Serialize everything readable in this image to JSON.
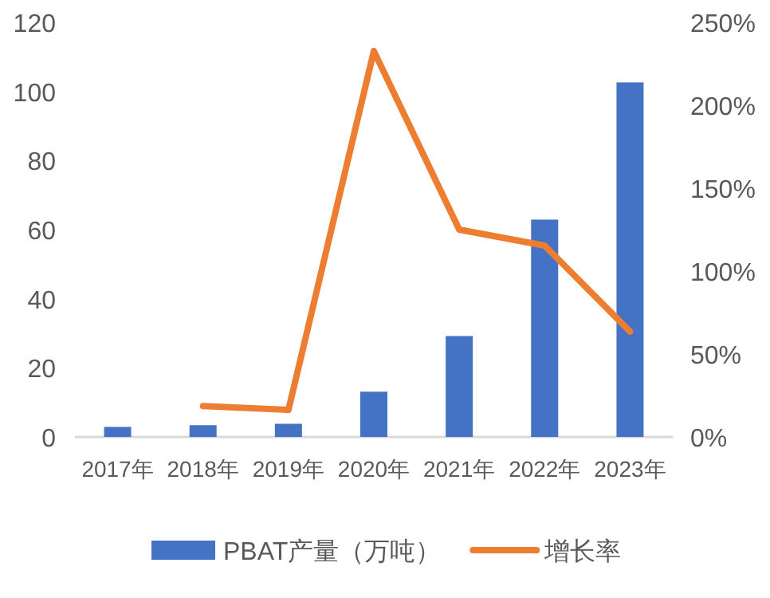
{
  "chart_data": {
    "type": "bar",
    "categories": [
      "2017年",
      "2018年",
      "2019年",
      "2020年",
      "2021年",
      "2022年",
      "2023年"
    ],
    "series": [
      {
        "name": "PBAT产量（万吨）",
        "color": "#4472c4",
        "values": [
          2.9,
          3.4,
          3.8,
          13.1,
          29.2,
          62.9,
          102.6
        ]
      },
      {
        "name": "增长率",
        "color": "#ed7d31",
        "type": "line",
        "axis": "y2",
        "line_style": "solid",
        "values": [
          null,
          18.6,
          16.3,
          232.7,
          125,
          115.4,
          63.5
        ]
      }
    ],
    "ylim": [
      0,
      120
    ],
    "yticks": [
      0,
      20,
      40,
      60,
      80,
      100,
      120
    ],
    "y2lim": [
      0,
      250
    ],
    "y2ticks": [
      {
        "value": 0,
        "label": "0%"
      },
      {
        "value": 50,
        "label": "50%"
      },
      {
        "value": 100,
        "label": "100%"
      },
      {
        "value": 150,
        "label": "150%"
      },
      {
        "value": 200,
        "label": "200%"
      },
      {
        "value": 250,
        "label": "250%"
      }
    ],
    "grid": false,
    "legend": "bottom"
  }
}
